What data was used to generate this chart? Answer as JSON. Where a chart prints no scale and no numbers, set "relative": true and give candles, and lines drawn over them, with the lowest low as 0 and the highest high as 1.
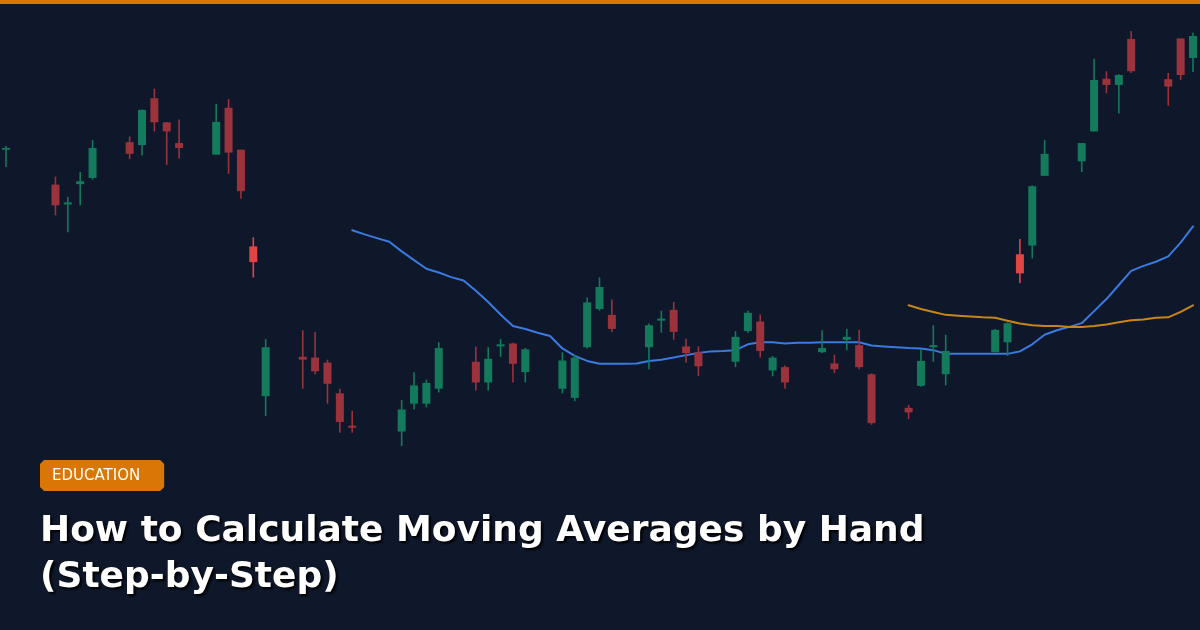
{
  "chart_data": {
    "type": "candlestick",
    "relative": true,
    "title": "How to Calculate Moving Averages by Hand (Step-by-Step)",
    "annotations": [
      "EDUCATION"
    ],
    "categories": [
      null,
      null,
      null,
      null,
      null,
      null,
      null,
      null,
      null,
      null,
      null,
      null,
      null,
      null,
      null,
      null,
      null,
      null,
      null,
      null,
      null,
      null,
      null,
      null,
      null,
      null,
      null,
      null,
      null,
      null,
      null,
      null,
      null,
      null,
      null,
      null,
      null,
      null,
      null,
      null,
      null,
      null,
      null,
      null,
      null,
      null,
      null,
      null,
      null,
      null,
      null,
      null,
      null,
      null,
      null,
      null,
      null,
      null,
      null,
      null,
      null,
      null,
      null,
      null,
      null,
      null,
      null,
      null,
      null,
      null,
      null,
      null,
      null,
      null,
      null,
      null,
      null,
      null,
      null,
      null,
      null,
      null,
      null,
      null,
      null,
      null,
      null,
      null,
      null,
      null,
      null,
      null,
      null,
      null,
      null,
      null,
      null
    ],
    "ohlc": [
      [
        0.714,
        0.723,
        0.672,
        0.718
      ],
      null,
      null,
      null,
      [
        0.63,
        0.649,
        0.556,
        0.58
      ],
      [
        0.582,
        0.6,
        0.515,
        0.587
      ],
      [
        0.631,
        0.66,
        0.58,
        0.638
      ],
      [
        0.646,
        0.737,
        0.642,
        0.718
      ],
      null,
      null,
      [
        0.732,
        0.746,
        0.691,
        0.704
      ],
      [
        0.725,
        0.811,
        0.7,
        0.81
      ],
      [
        0.838,
        0.861,
        0.758,
        0.78
      ],
      [
        0.78,
        0.78,
        0.677,
        0.758
      ],
      [
        0.73,
        0.787,
        0.693,
        0.718
      ],
      null,
      null,
      [
        0.702,
        0.825,
        0.702,
        0.781
      ],
      [
        0.815,
        0.836,
        0.656,
        0.707
      ],
      [
        0.714,
        0.714,
        0.596,
        0.614
      ],
      [
        0.481,
        0.503,
        0.406,
        0.443
      ],
      [
        0.12,
        0.258,
        0.072,
        0.238
      ],
      null,
      null,
      [
        0.215,
        0.279,
        0.138,
        0.208
      ],
      [
        0.213,
        0.275,
        0.173,
        0.18
      ],
      [
        0.201,
        0.208,
        0.102,
        0.15
      ],
      [
        0.127,
        0.138,
        0.032,
        0.058
      ],
      [
        0.049,
        0.085,
        0.032,
        0.044
      ],
      null,
      null,
      null,
      [
        0.035,
        0.111,
        0,
        0.088
      ],
      [
        0.102,
        0.178,
        0.088,
        0.146
      ],
      [
        0.102,
        0.16,
        0.093,
        0.152
      ],
      [
        0.138,
        0.25,
        0.129,
        0.236
      ],
      null,
      null,
      [
        0.203,
        0.24,
        0.134,
        0.153
      ],
      [
        0.153,
        0.238,
        0.134,
        0.21
      ],
      [
        0.24,
        0.258,
        0.215,
        0.245
      ],
      [
        0.247,
        0.249,
        0.153,
        0.198
      ],
      [
        0.178,
        0.236,
        0.153,
        0.233
      ],
      null,
      null,
      [
        0.138,
        0.226,
        0.127,
        0.206
      ],
      [
        0.116,
        0.219,
        0.108,
        0.213
      ],
      [
        0.238,
        0.358,
        0.235,
        0.346
      ],
      [
        0.33,
        0.406,
        0.326,
        0.383
      ],
      [
        0.316,
        0.353,
        0.275,
        0.282
      ],
      null,
      null,
      [
        0.238,
        0.295,
        0.185,
        0.291
      ],
      [
        0.302,
        0.326,
        0.273,
        0.307
      ],
      [
        0.328,
        0.347,
        0.256,
        0.275
      ],
      [
        0.24,
        0.259,
        0.201,
        0.224
      ],
      [
        0.226,
        0.24,
        0.169,
        0.192
      ],
      null,
      null,
      [
        0.203,
        0.277,
        0.19,
        0.263
      ],
      [
        0.277,
        0.326,
        0.273,
        0.321
      ],
      [
        0.3,
        0.317,
        0.213,
        0.229
      ],
      [
        0.182,
        0.217,
        0.168,
        0.213
      ],
      [
        0.19,
        0.194,
        0.138,
        0.153
      ],
      null,
      null,
      [
        0.226,
        0.279,
        0.224,
        0.236
      ],
      [
        0.199,
        0.22,
        0.176,
        0.185
      ],
      [
        0.256,
        0.282,
        0.231,
        0.263
      ],
      [
        0.243,
        0.28,
        0.185,
        0.19
      ],
      [
        0.173,
        0.175,
        0.051,
        0.055
      ],
      null,
      null,
      [
        0.092,
        0.099,
        0.065,
        0.081
      ],
      [
        0.145,
        0.233,
        0.143,
        0.205
      ],
      [
        0.238,
        0.291,
        0.203,
        0.243
      ],
      [
        0.173,
        0.268,
        0.146,
        0.229
      ],
      null,
      null,
      null,
      [
        0.226,
        0.282,
        0.226,
        0.28
      ],
      [
        0.25,
        0.298,
        0.217,
        0.296
      ],
      [
        0.462,
        0.499,
        0.392,
        0.416
      ],
      [
        0.483,
        0.628,
        0.452,
        0.626
      ],
      [
        0.651,
        0.737,
        0.651,
        0.704
      ],
      null,
      null,
      [
        0.686,
        0.73,
        0.66,
        0.73
      ],
      [
        0.758,
        0.933,
        0.758,
        0.882
      ],
      [
        0.885,
        0.903,
        0.85,
        0.87
      ],
      [
        0.87,
        0.896,
        0.801,
        0.894
      ],
      [
        0.981,
        1,
        0.899,
        0.903
      ],
      null,
      null,
      [
        0.884,
        0.899,
        0.82,
        0.866
      ],
      [
        0.982,
        0.982,
        0.882,
        0.894
      ],
      [
        0.935,
        0.996,
        0.901,
        0.988
      ]
    ],
    "colors": [
      "#137a5c",
      null,
      null,
      null,
      "#9b323c",
      "#137a5c",
      "#137a5c",
      "#137a5c",
      null,
      null,
      "#9b323c",
      "#137a5c",
      "#9b323c",
      "#9b323c",
      "#9b323c",
      null,
      null,
      "#137a5c",
      "#9b323c",
      "#9b323c",
      "#e04444",
      "#137a5c",
      null,
      null,
      "#9b323c",
      "#9b323c",
      "#9b323c",
      "#9b323c",
      "#9b323c",
      null,
      null,
      null,
      "#137a5c",
      "#137a5c",
      "#137a5c",
      "#137a5c",
      null,
      null,
      "#9b323c",
      "#137a5c",
      "#137a5c",
      "#9b323c",
      "#137a5c",
      null,
      null,
      "#137a5c",
      "#137a5c",
      "#137a5c",
      "#137a5c",
      "#9b323c",
      null,
      null,
      "#137a5c",
      "#137a5c",
      "#9b323c",
      "#9b323c",
      "#9b323c",
      null,
      null,
      "#137a5c",
      "#137a5c",
      "#9b323c",
      "#137a5c",
      "#9b323c",
      null,
      null,
      "#137a5c",
      "#9b323c",
      "#137a5c",
      "#9b323c",
      "#9b323c",
      null,
      null,
      "#9b323c",
      "#137a5c",
      "#137a5c",
      "#137a5c",
      null,
      null,
      null,
      "#137a5c",
      "#137a5c",
      "#e04444",
      "#137a5c",
      "#137a5c",
      null,
      null,
      "#137a5c",
      "#137a5c",
      "#9b323c",
      "#137a5c",
      "#9b323c",
      null,
      null,
      "#9b323c",
      "#9b323c",
      "#137a5c"
    ],
    "series": [
      {
        "type": "line",
        "color": "#3b7ae0",
        "values": [
          null,
          null,
          null,
          null,
          null,
          null,
          null,
          null,
          null,
          null,
          null,
          null,
          null,
          null,
          null,
          null,
          null,
          null,
          null,
          null,
          null,
          null,
          null,
          null,
          null,
          null,
          null,
          null,
          0.52,
          0.51,
          0.501,
          0.492,
          0.469,
          0.448,
          0.427,
          0.418,
          0.407,
          0.399,
          0.374,
          0.347,
          0.317,
          0.289,
          0.282,
          0.273,
          0.265,
          0.235,
          0.217,
          0.205,
          0.198,
          0.198,
          0.198,
          0.199,
          0.205,
          0.208,
          0.213,
          0.219,
          0.224,
          0.228,
          0.229,
          0.231,
          0.245,
          0.25,
          0.25,
          0.247,
          0.249,
          0.249,
          0.25,
          0.25,
          0.25,
          0.25,
          0.242,
          0.24,
          0.238,
          0.236,
          0.235,
          0.231,
          0.222,
          0.222,
          0.222,
          0.222,
          0.222,
          0.222,
          0.228,
          0.245,
          0.268,
          0.279,
          0.287,
          0.296,
          0.325,
          0.354,
          0.388,
          0.422,
          0.434,
          0.444,
          0.457,
          0.49,
          0.529
        ]
      },
      {
        "type": "line",
        "color": "#c8861a",
        "values": [
          null,
          null,
          null,
          null,
          null,
          null,
          null,
          null,
          null,
          null,
          null,
          null,
          null,
          null,
          null,
          null,
          null,
          null,
          null,
          null,
          null,
          null,
          null,
          null,
          null,
          null,
          null,
          null,
          null,
          null,
          null,
          null,
          null,
          null,
          null,
          null,
          null,
          null,
          null,
          null,
          null,
          null,
          null,
          null,
          null,
          null,
          null,
          null,
          null,
          null,
          null,
          null,
          null,
          null,
          null,
          null,
          null,
          null,
          null,
          null,
          null,
          null,
          null,
          null,
          null,
          null,
          null,
          null,
          null,
          null,
          null,
          null,
          null,
          0.339,
          0.33,
          0.323,
          0.316,
          0.314,
          0.312,
          0.31,
          0.309,
          0.302,
          0.295,
          0.291,
          0.289,
          0.289,
          0.287,
          0.287,
          0.289,
          0.293,
          0.298,
          0.303,
          0.305,
          0.309,
          0.31,
          0.323,
          0.339
        ]
      }
    ]
  }
}
